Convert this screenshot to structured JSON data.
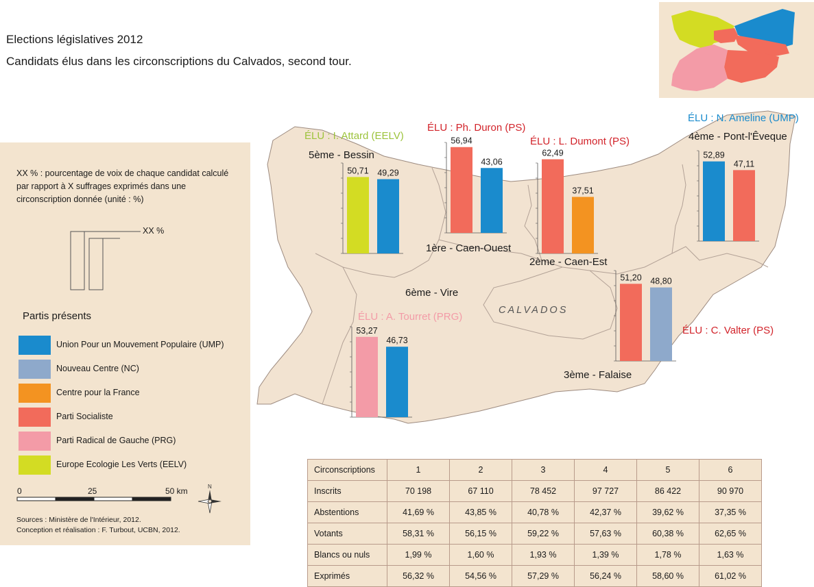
{
  "title": "Elections législatives 2012",
  "subtitle": "Candidats élus dans les circonscriptions du Calvados, second tour.",
  "legend": {
    "note": "XX % : pourcentage de voix de chaque candidat calculé par rapport à X suffrages exprimés dans une circonscription donnée (unité : %)",
    "example_label": "XX %",
    "parties_title": "Partis présents",
    "parties": [
      {
        "label": "Union Pour un Mouvement Populaire (UMP)",
        "color": "#1a8bcd"
      },
      {
        "label": "Nouveau Centre (NC)",
        "color": "#8ea9cb"
      },
      {
        "label": "Centre pour la France",
        "color": "#f39321"
      },
      {
        "label": "Parti Socialiste",
        "color": "#f26b5b"
      },
      {
        "label": "Parti Radical de Gauche (PRG)",
        "color": "#f39ba7"
      },
      {
        "label": "Europe Ecologie Les Verts (EELV)",
        "color": "#d3dc23"
      }
    ],
    "scale": {
      "t0": "0",
      "t1": "25",
      "t2": "50 km"
    },
    "north": "N",
    "sources": "Sources : Ministère de l'Intérieur, 2012.",
    "credits": "Conception et réalisation : F. Turbout, UCBN, 2012."
  },
  "map": {
    "department_label": "CALVADOS",
    "circonscriptions": [
      {
        "name": "1ère - Caen-Ouest",
        "elu": "ÉLU : Ph. Duron (PS)",
        "elu_color": "#d2232a"
      },
      {
        "name": "2ème - Caen-Est",
        "elu": "ÉLU : L. Dumont (PS)",
        "elu_color": "#d2232a"
      },
      {
        "name": "3ème - Falaise",
        "elu": "ÉLU : C. Valter (PS)",
        "elu_color": "#d2232a"
      },
      {
        "name": "4ème - Pont-l'Êveque",
        "elu": "ÉLU : N. Ameline (UMP)",
        "elu_color": "#1a8bcd"
      },
      {
        "name": "5ème - Bessin",
        "elu": "ÉLU : I. Attard (EELV)",
        "elu_color": "#9cc33b"
      },
      {
        "name": "6ème - Vire",
        "elu": "ÉLU : A. Tourret (PRG)",
        "elu_color": "#f39ba7"
      }
    ]
  },
  "chart_data": [
    {
      "type": "bar",
      "circonscription": "1ère - Caen-Ouest",
      "values": [
        56.94,
        43.06
      ],
      "labels": [
        "56,94",
        "43,06"
      ],
      "colors": [
        "#f26b5b",
        "#1a8bcd"
      ]
    },
    {
      "type": "bar",
      "circonscription": "2ème - Caen-Est",
      "values": [
        62.49,
        37.51
      ],
      "labels": [
        "62,49",
        "37,51"
      ],
      "colors": [
        "#f26b5b",
        "#f39321"
      ]
    },
    {
      "type": "bar",
      "circonscription": "3ème - Falaise",
      "values": [
        51.2,
        48.8
      ],
      "labels": [
        "51,20",
        "48,80"
      ],
      "colors": [
        "#f26b5b",
        "#8ea9cb"
      ]
    },
    {
      "type": "bar",
      "circonscription": "4ème - Pont-l'Êveque",
      "values": [
        52.89,
        47.11
      ],
      "labels": [
        "52,89",
        "47,11"
      ],
      "colors": [
        "#1a8bcd",
        "#f26b5b"
      ]
    },
    {
      "type": "bar",
      "circonscription": "5ème - Bessin",
      "values": [
        50.71,
        49.29
      ],
      "labels": [
        "50,71",
        "49,29"
      ],
      "colors": [
        "#d3dc23",
        "#1a8bcd"
      ]
    },
    {
      "type": "bar",
      "circonscription": "6ème - Vire",
      "values": [
        53.27,
        46.73
      ],
      "labels": [
        "53,27",
        "46,73"
      ],
      "colors": [
        "#f39ba7",
        "#1a8bcd"
      ]
    }
  ],
  "table": {
    "header": [
      "Circonscriptions",
      "1",
      "2",
      "3",
      "4",
      "5",
      "6"
    ],
    "rows": [
      [
        "Inscrits",
        "70 198",
        "67 110",
        "78 452",
        "97 727",
        "86 422",
        "90 970"
      ],
      [
        "Abstentions",
        "41,69 %",
        "43,85 %",
        "40,78 %",
        "42,37 %",
        "39,62 %",
        "37,35 %"
      ],
      [
        "Votants",
        "58,31 %",
        "56,15 %",
        "59,22 %",
        "57,63 %",
        "60,38 %",
        "62,65 %"
      ],
      [
        "Blancs ou nuls",
        "1,99 %",
        "1,60 %",
        "1,93 %",
        "1,39 %",
        "1,78 %",
        "1,63 %"
      ],
      [
        "Exprimés",
        "56,32 %",
        "54,56 %",
        "57,29 %",
        "56,24 %",
        "58,60 %",
        "61,02 %"
      ]
    ]
  }
}
